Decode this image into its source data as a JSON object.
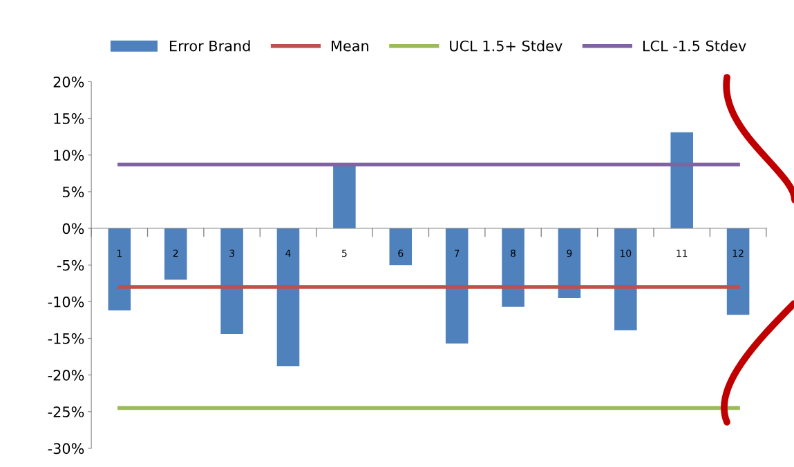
{
  "chart_data": {
    "type": "bar",
    "categories": [
      "1",
      "2",
      "3",
      "4",
      "5",
      "6",
      "7",
      "8",
      "9",
      "10",
      "11",
      "12"
    ],
    "series": [
      {
        "name": "Error Brand",
        "color": "#4f81bd",
        "values": [
          -11.2,
          -7.0,
          -14.4,
          -18.8,
          8.7,
          -5.0,
          -15.7,
          -10.7,
          -9.5,
          -13.9,
          13.1,
          -11.8
        ]
      },
      {
        "name": "Mean",
        "type": "line",
        "color": "#c0504d",
        "values": [
          -8.0,
          -8.0,
          -8.0,
          -8.0,
          -8.0,
          -8.0,
          -8.0,
          -8.0,
          -8.0,
          -8.0,
          -8.0,
          -8.0
        ]
      },
      {
        "name": "UCL 1.5+ Stdev",
        "type": "line",
        "color": "#9bbb59",
        "values": [
          -24.5,
          -24.5,
          -24.5,
          -24.5,
          -24.5,
          -24.5,
          -24.5,
          -24.5,
          -24.5,
          -24.5,
          -24.5,
          -24.5
        ]
      },
      {
        "name": "LCL -1.5 Stdev",
        "type": "line",
        "color": "#8064a2",
        "values": [
          8.7,
          8.7,
          8.7,
          8.7,
          8.7,
          8.7,
          8.7,
          8.7,
          8.7,
          8.7,
          8.7,
          8.7
        ]
      }
    ],
    "ylim": [
      -30,
      20
    ],
    "yticks": [
      {
        "value": -30,
        "label": "-30%"
      },
      {
        "value": -25,
        "label": "-25%"
      },
      {
        "value": -20,
        "label": "-20%"
      },
      {
        "value": -15,
        "label": "-15%"
      },
      {
        "value": -10,
        "label": "-10%"
      },
      {
        "value": -5,
        "label": "-5%"
      },
      {
        "value": 0,
        "label": "0%"
      },
      {
        "value": 5,
        "label": "5%"
      },
      {
        "value": 10,
        "label": "10%"
      },
      {
        "value": 15,
        "label": "15%"
      },
      {
        "value": 20,
        "label": "20%"
      }
    ],
    "legend": "top",
    "grid": false,
    "marker": "none",
    "line_style": "solid"
  }
}
